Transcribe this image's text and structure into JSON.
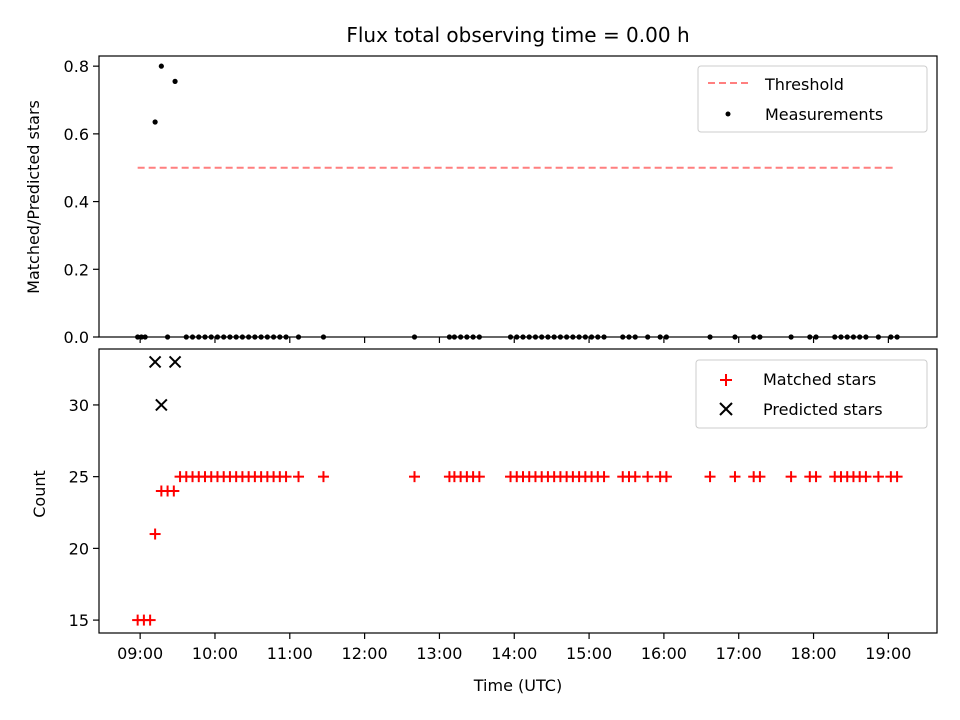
{
  "chart_data": [
    {
      "type": "scatter",
      "title": "Flux total observing time = 0.00 h",
      "xlabel": "",
      "ylabel": "Matched/Predicted stars",
      "ylim": [
        0,
        0.83
      ],
      "yticks": [
        "0.0",
        "0.2",
        "0.4",
        "0.6",
        "0.8"
      ],
      "legend": "top-right",
      "threshold": {
        "name": "Threshold",
        "value": 0.5,
        "x_range": [
          "08:58",
          "19:05"
        ],
        "color": "#ff7f7f",
        "style": "dashed"
      },
      "series": [
        {
          "name": "Measurements",
          "color": "#000000",
          "marker": "dot",
          "x": [
            "08:58",
            "09:01",
            "09:04",
            "09:12",
            "09:17",
            "09:22",
            "09:28",
            "09:37",
            "09:42",
            "09:47",
            "09:52",
            "09:57",
            "10:02",
            "10:07",
            "10:12",
            "10:17",
            "10:22",
            "10:27",
            "10:32",
            "10:37",
            "10:42",
            "10:47",
            "10:52",
            "10:57",
            "11:07",
            "11:27",
            "12:40",
            "13:08",
            "13:12",
            "13:17",
            "13:22",
            "13:27",
            "13:32",
            "13:57",
            "14:02",
            "14:07",
            "14:12",
            "14:17",
            "14:22",
            "14:27",
            "14:32",
            "14:37",
            "14:42",
            "14:47",
            "14:52",
            "14:57",
            "15:02",
            "15:07",
            "15:12",
            "15:27",
            "15:32",
            "15:37",
            "15:47",
            "15:57",
            "16:02",
            "16:37",
            "16:57",
            "17:12",
            "17:17",
            "17:42",
            "17:57",
            "18:02",
            "18:17",
            "18:22",
            "18:27",
            "18:32",
            "18:37",
            "18:42",
            "18:52",
            "19:02",
            "19:07"
          ],
          "y": [
            0,
            0,
            0,
            0.635,
            0.8,
            0,
            0.755,
            0,
            0,
            0,
            0,
            0,
            0,
            0,
            0,
            0,
            0,
            0,
            0,
            0,
            0,
            0,
            0,
            0,
            0,
            0,
            0,
            0,
            0,
            0,
            0,
            0,
            0,
            0,
            0,
            0,
            0,
            0,
            0,
            0,
            0,
            0,
            0,
            0,
            0,
            0,
            0,
            0,
            0,
            0,
            0,
            0,
            0,
            0,
            0,
            0,
            0,
            0,
            0,
            0,
            0,
            0,
            0,
            0,
            0,
            0,
            0,
            0,
            0,
            0,
            0
          ]
        }
      ]
    },
    {
      "type": "scatter",
      "title": "",
      "xlabel": "Time (UTC)",
      "ylabel": "Count",
      "ylim": [
        14.1,
        33.9
      ],
      "xlim": [
        "08:27",
        "19:39"
      ],
      "yticks": [
        "15",
        "20",
        "25",
        "30"
      ],
      "xticks": [
        "09:00",
        "10:00",
        "11:00",
        "12:00",
        "13:00",
        "14:00",
        "15:00",
        "16:00",
        "17:00",
        "18:00",
        "19:00"
      ],
      "legend": "top-right",
      "series": [
        {
          "name": "Matched stars",
          "color": "#ff0000",
          "marker": "plus",
          "x": [
            "08:58",
            "09:03",
            "09:08",
            "09:12",
            "09:17",
            "09:22",
            "09:27",
            "09:32",
            "09:37",
            "09:42",
            "09:47",
            "09:52",
            "09:57",
            "10:02",
            "10:07",
            "10:12",
            "10:17",
            "10:22",
            "10:27",
            "10:32",
            "10:37",
            "10:42",
            "10:47",
            "10:52",
            "10:57",
            "11:07",
            "11:27",
            "12:40",
            "13:08",
            "13:12",
            "13:17",
            "13:22",
            "13:27",
            "13:32",
            "13:57",
            "14:02",
            "14:07",
            "14:12",
            "14:17",
            "14:22",
            "14:27",
            "14:32",
            "14:37",
            "14:42",
            "14:47",
            "14:52",
            "14:57",
            "15:02",
            "15:07",
            "15:12",
            "15:27",
            "15:32",
            "15:37",
            "15:47",
            "15:57",
            "16:02",
            "16:37",
            "16:57",
            "17:12",
            "17:17",
            "17:42",
            "17:57",
            "18:02",
            "18:17",
            "18:22",
            "18:27",
            "18:32",
            "18:37",
            "18:42",
            "18:52",
            "19:02",
            "19:07"
          ],
          "y": [
            15,
            15,
            15,
            21,
            24,
            24,
            24,
            25,
            25,
            25,
            25,
            25,
            25,
            25,
            25,
            25,
            25,
            25,
            25,
            25,
            25,
            25,
            25,
            25,
            25,
            25,
            25,
            25,
            25,
            25,
            25,
            25,
            25,
            25,
            25,
            25,
            25,
            25,
            25,
            25,
            25,
            25,
            25,
            25,
            25,
            25,
            25,
            25,
            25,
            25,
            25,
            25,
            25,
            25,
            25,
            25,
            25,
            25,
            25,
            25,
            25,
            25,
            25,
            25,
            25,
            25,
            25,
            25,
            25,
            25,
            25,
            25
          ]
        },
        {
          "name": "Predicted stars",
          "color": "#000000",
          "marker": "x",
          "x": [
            "09:12",
            "09:17",
            "09:28"
          ],
          "y": [
            33,
            30,
            33
          ]
        }
      ]
    }
  ]
}
